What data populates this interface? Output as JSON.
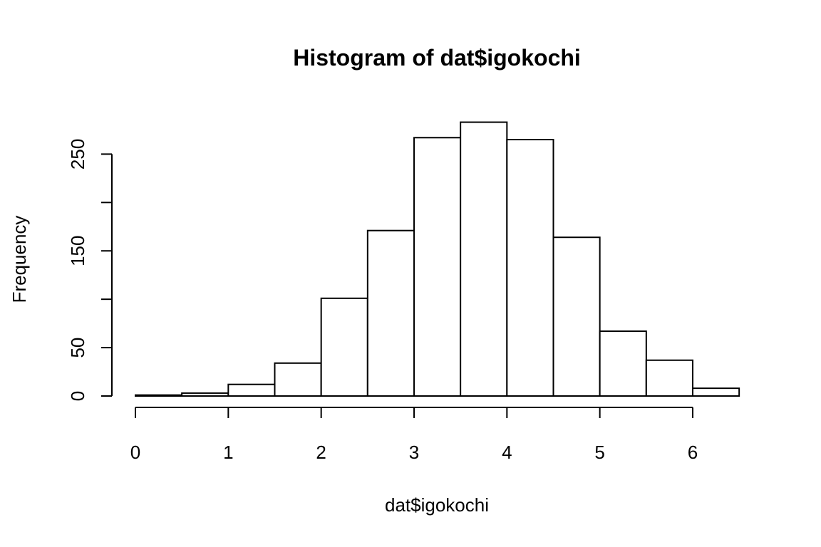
{
  "chart_data": {
    "type": "bar",
    "subtype": "histogram",
    "title": "Histogram of dat$igokochi",
    "xlabel": "dat$igokochi",
    "ylabel": "Frequency",
    "bins": [
      {
        "x0": 0.0,
        "x1": 0.5,
        "count": 1
      },
      {
        "x0": 0.5,
        "x1": 1.0,
        "count": 3
      },
      {
        "x0": 1.0,
        "x1": 1.5,
        "count": 12
      },
      {
        "x0": 1.5,
        "x1": 2.0,
        "count": 34
      },
      {
        "x0": 2.0,
        "x1": 2.5,
        "count": 101
      },
      {
        "x0": 2.5,
        "x1": 3.0,
        "count": 171
      },
      {
        "x0": 3.0,
        "x1": 3.5,
        "count": 267
      },
      {
        "x0": 3.5,
        "x1": 4.0,
        "count": 283
      },
      {
        "x0": 4.0,
        "x1": 4.5,
        "count": 265
      },
      {
        "x0": 4.5,
        "x1": 5.0,
        "count": 164
      },
      {
        "x0": 5.0,
        "x1": 5.5,
        "count": 67
      },
      {
        "x0": 5.5,
        "x1": 6.0,
        "count": 37
      },
      {
        "x0": 6.0,
        "x1": 6.5,
        "count": 8
      }
    ],
    "xlim": [
      0,
      6.5
    ],
    "ylim": [
      0,
      283
    ],
    "xticks": [
      0,
      1,
      2,
      3,
      4,
      5,
      6
    ],
    "xtick_labels": [
      "0",
      "1",
      "2",
      "3",
      "4",
      "5",
      "6"
    ],
    "yticks": [
      0,
      50,
      100,
      150,
      200,
      250
    ],
    "ytick_labels": [
      "0",
      "50",
      "",
      "150",
      "",
      "250"
    ],
    "grid": false,
    "legend": "none",
    "bar_fill": "#ffffff",
    "bar_stroke": "#000000"
  }
}
